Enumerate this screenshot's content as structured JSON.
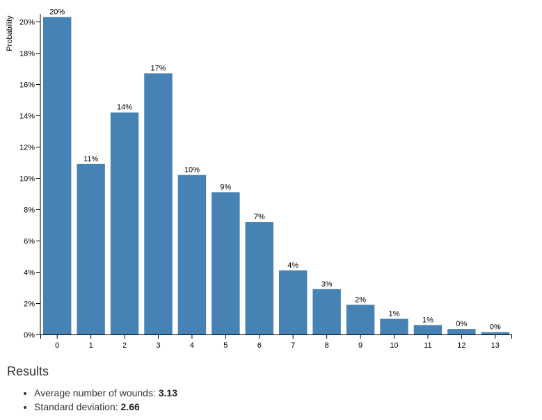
{
  "chart_data": {
    "type": "bar",
    "ylabel": "Probability",
    "xlabel": "",
    "categories": [
      "0",
      "1",
      "2",
      "3",
      "4",
      "5",
      "6",
      "7",
      "8",
      "9",
      "10",
      "11",
      "12",
      "13"
    ],
    "values": [
      20.3,
      10.9,
      14.2,
      16.7,
      10.2,
      9.1,
      7.2,
      4.1,
      2.9,
      1.9,
      1.0,
      0.6,
      0.35,
      0.15
    ],
    "data_labels": [
      "20%",
      "11%",
      "14%",
      "17%",
      "10%",
      "9%",
      "7%",
      "4%",
      "3%",
      "2%",
      "1%",
      "1%",
      "0%",
      "0%"
    ],
    "ylim": [
      0,
      20.5
    ],
    "yticks": [
      0,
      2,
      4,
      6,
      8,
      10,
      12,
      14,
      16,
      18,
      20
    ],
    "ytick_labels": [
      "0%",
      "2%",
      "4%",
      "6%",
      "8%",
      "10%",
      "12%",
      "14%",
      "16%",
      "18%",
      "20%"
    ],
    "bar_color": "#4682b4"
  },
  "results": {
    "title": "Results",
    "items": [
      {
        "label": "Average number of wounds: ",
        "value": "3.13"
      },
      {
        "label": "Standard deviation: ",
        "value": "2.66"
      }
    ]
  }
}
